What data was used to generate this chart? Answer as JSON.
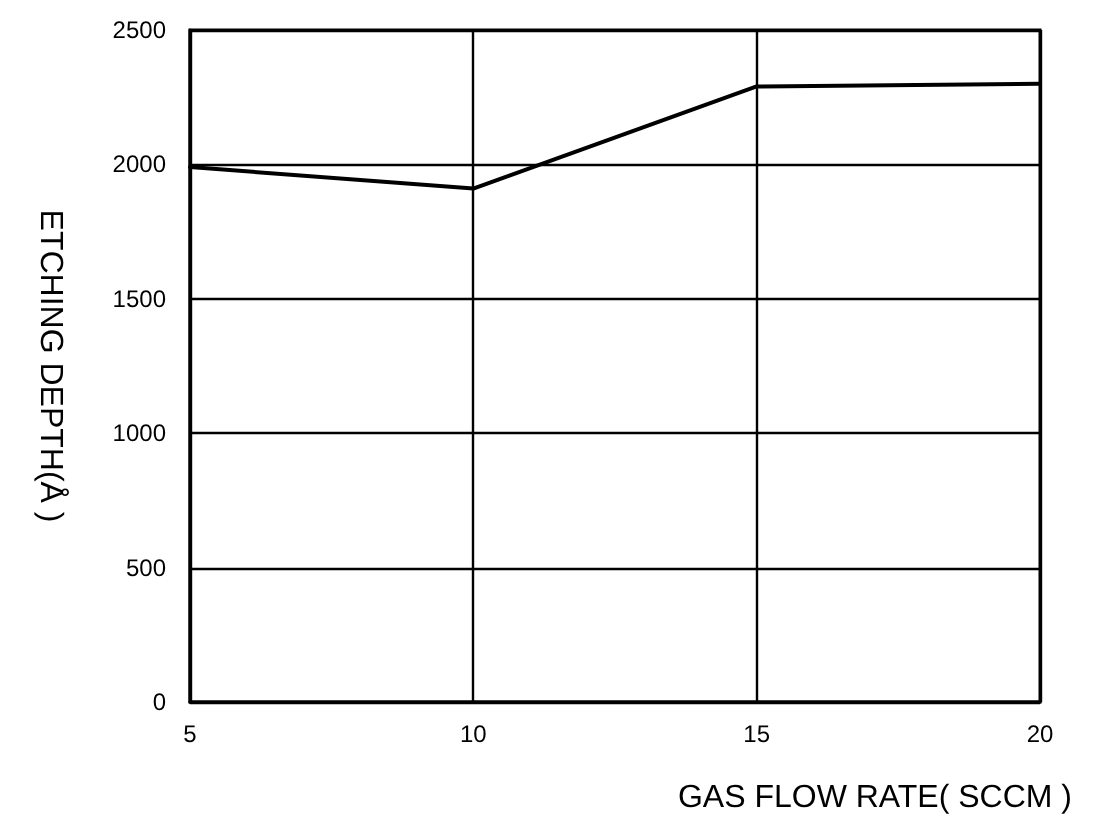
{
  "chart_data": {
    "type": "line",
    "xlabel": "GAS FLOW RATE( SCCM )",
    "ylabel": "ETCHING DEPTH(Å )",
    "x": [
      5,
      10,
      15,
      20
    ],
    "series": [
      {
        "color": "#000000",
        "values": [
          1990,
          1910,
          2290,
          2300
        ]
      }
    ],
    "xlim": [
      5,
      20
    ],
    "xticks": [
      5,
      10,
      15,
      20
    ],
    "ylim": [
      0,
      2500
    ],
    "yticks": [
      0,
      500,
      1000,
      1500,
      2000,
      2500
    ],
    "grid": true,
    "marker": "none",
    "line_style": "solid"
  }
}
